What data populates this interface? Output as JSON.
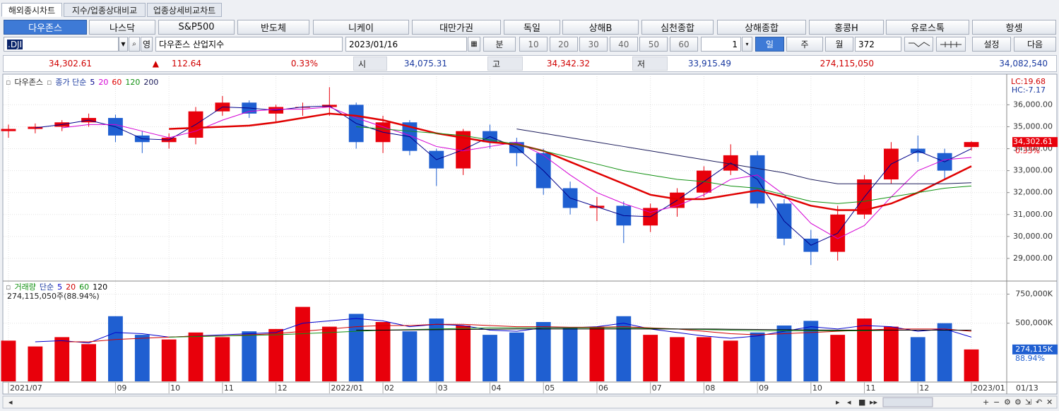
{
  "tabs": [
    "해외종시차트",
    "지수/업종상대비교",
    "업종상세비교차트"
  ],
  "markets": [
    "다우존스",
    "나스닥",
    "S&P500",
    "반도체",
    "니케이",
    "대만가권",
    "독일",
    "상해B",
    "심천종합",
    "상해종합",
    "홍콩H",
    "유로스톡",
    "항셍"
  ],
  "toolbar": {
    "code": ".DJI",
    "eng": "영",
    "name": "다우존스 산업지수",
    "date": "2023/01/16",
    "unit": "분",
    "minutes": [
      "10",
      "20",
      "30",
      "40",
      "50",
      "60"
    ],
    "step": "1",
    "periods": [
      "일",
      "주",
      "월"
    ],
    "count": "372",
    "settings": "설정",
    "next": "다음"
  },
  "quote": {
    "last": "34,302.61",
    "arrow": "▲",
    "change": "112.64",
    "rate": "0.33%",
    "open_label": "시",
    "open": "34,075.31",
    "high_label": "고",
    "high": "34,342.32",
    "low_label": "저",
    "low": "33,915.49",
    "volume": "274,115,050",
    "amount": "34,082,540"
  },
  "chart_data": [
    {
      "type": "candlestick",
      "title": "다우존스",
      "ma_label": "종가 단순",
      "categories": [
        "2021/07",
        null,
        null,
        null,
        "09",
        null,
        "10",
        null,
        "11",
        null,
        "12",
        null,
        "2022/01",
        null,
        "02",
        null,
        "03",
        null,
        "04",
        null,
        "05",
        null,
        "06",
        null,
        "07",
        null,
        "08",
        null,
        "09",
        null,
        "10",
        null,
        "11",
        null,
        "12",
        null,
        "2023/01"
      ],
      "x_end_label": "01/13",
      "open": [
        34800,
        34900,
        35000,
        35200,
        35400,
        34600,
        34300,
        34500,
        35700,
        36100,
        35600,
        35900,
        35900,
        36000,
        34300,
        35200,
        33900,
        33100,
        34800,
        34300,
        33800,
        32200,
        31300,
        31400,
        30500,
        31300,
        32000,
        33000,
        33700,
        31500,
        29900,
        29300,
        31000,
        32600,
        34000,
        33800,
        34075.31
      ],
      "high": [
        35100,
        35150,
        35300,
        35600,
        35550,
        34800,
        34700,
        35900,
        36400,
        36200,
        36000,
        36100,
        36800,
        36100,
        35500,
        35300,
        34000,
        34900,
        35100,
        34500,
        34000,
        32500,
        31800,
        31600,
        31500,
        32200,
        33200,
        34200,
        33900,
        31700,
        30300,
        31400,
        32800,
        34300,
        34600,
        34000,
        34342.32
      ],
      "low": [
        34500,
        34700,
        34800,
        35000,
        34300,
        33800,
        34000,
        34200,
        35500,
        35400,
        35200,
        35500,
        35500,
        34000,
        33800,
        33700,
        32300,
        32800,
        34000,
        33200,
        31900,
        31000,
        30700,
        29700,
        30200,
        30900,
        31800,
        32800,
        31300,
        29600,
        28700,
        28900,
        30800,
        32400,
        33400,
        32600,
        33915.49
      ],
      "close": [
        34900,
        35000,
        35200,
        35400,
        34600,
        34300,
        34500,
        35700,
        36100,
        35600,
        35900,
        35900,
        36000,
        34300,
        35200,
        33900,
        33100,
        34800,
        34300,
        33800,
        32200,
        31300,
        31400,
        30500,
        31300,
        32000,
        33000,
        33700,
        31500,
        29900,
        29300,
        31000,
        32600,
        34000,
        33800,
        33000,
        34302.61
      ],
      "up_color": "#e8000b",
      "down_color": "#1f5fd1",
      "series": [
        {
          "name": "5",
          "color": "#00008b",
          "width": 1,
          "values": [
            null,
            34950,
            35100,
            35300,
            35000,
            34450,
            34400,
            35100,
            35900,
            35850,
            35750,
            35900,
            35950,
            35150,
            34750,
            34550,
            33500,
            33950,
            34550,
            34050,
            33000,
            31750,
            31350,
            30950,
            30900,
            31650,
            32500,
            33350,
            32600,
            30700,
            29600,
            30150,
            31800,
            33300,
            33900,
            33400,
            34000
          ]
        },
        {
          "name": "20",
          "color": "#d400d4",
          "width": 1,
          "values": [
            null,
            null,
            34950,
            35100,
            35100,
            34800,
            34500,
            34800,
            35300,
            35700,
            35800,
            35800,
            35900,
            35400,
            35000,
            34600,
            34100,
            33900,
            34100,
            34300,
            33700,
            32800,
            32000,
            31500,
            31100,
            31400,
            31900,
            32600,
            32800,
            31900,
            30600,
            29900,
            30500,
            31800,
            33000,
            33500,
            33600
          ]
        },
        {
          "name": "60",
          "color": "#e00000",
          "width": 2.5,
          "values": [
            null,
            null,
            null,
            null,
            null,
            null,
            34900,
            34950,
            35000,
            35050,
            35200,
            35400,
            35600,
            35500,
            35300,
            35000,
            34700,
            34500,
            34300,
            34200,
            33900,
            33400,
            32900,
            32400,
            31900,
            31700,
            31700,
            31900,
            32100,
            31800,
            31400,
            31200,
            31200,
            31500,
            32000,
            32600,
            33200
          ]
        },
        {
          "name": "120",
          "color": "#109010",
          "width": 1,
          "values": [
            null,
            null,
            null,
            null,
            null,
            null,
            null,
            null,
            null,
            null,
            null,
            null,
            null,
            35000,
            34900,
            34800,
            34700,
            34600,
            34400,
            34200,
            33900,
            33600,
            33300,
            33000,
            32800,
            32600,
            32500,
            32300,
            32200,
            31900,
            31600,
            31500,
            31600,
            31800,
            32000,
            32200,
            32300
          ]
        },
        {
          "name": "200",
          "color": "#1a1a5a",
          "width": 1,
          "values": [
            null,
            null,
            null,
            null,
            null,
            null,
            null,
            null,
            null,
            null,
            null,
            null,
            null,
            null,
            null,
            null,
            null,
            null,
            null,
            34900,
            34700,
            34500,
            34300,
            34100,
            33900,
            33700,
            33500,
            33300,
            33100,
            32900,
            32600,
            32400,
            32400,
            32400,
            32400,
            32400,
            32450
          ]
        }
      ],
      "ylim": [
        28000,
        37300
      ],
      "yticks": [
        {
          "value": 29000,
          "label": "29,000.00"
        },
        {
          "value": 30000,
          "label": "30,000.00"
        },
        {
          "value": 31000,
          "label": "31,000.00"
        },
        {
          "value": 32000,
          "label": "32,000.00"
        },
        {
          "value": 33000,
          "label": "33,000.00"
        },
        {
          "value": 34000,
          "label": "34,000.00"
        },
        {
          "value": 35000,
          "label": "35,000.00"
        },
        {
          "value": 36000,
          "label": "36,000.00"
        }
      ],
      "grid": true,
      "annotations": [
        "LC:19.68",
        "HC:-7.17"
      ],
      "last_label": "34,302.61",
      "last_rate": "0.33%"
    },
    {
      "type": "bar",
      "title": "거래량",
      "ma_label": "단순",
      "subtitle": "274,115,050주(88.94%)",
      "values": [
        350000,
        300000,
        380000,
        320000,
        560000,
        400000,
        360000,
        420000,
        380000,
        430000,
        450000,
        640000,
        470000,
        580000,
        510000,
        430000,
        540000,
        480000,
        400000,
        420000,
        510000,
        460000,
        470000,
        560000,
        400000,
        380000,
        380000,
        350000,
        420000,
        480000,
        520000,
        400000,
        540000,
        470000,
        380000,
        500000,
        274115
      ],
      "series": [
        {
          "name": "5",
          "color": "#0000cc",
          "values": [
            null,
            340000,
            350000,
            330000,
            420000,
            410000,
            380000,
            390000,
            400000,
            410000,
            420000,
            500000,
            520000,
            540000,
            520000,
            470000,
            490000,
            480000,
            440000,
            430000,
            460000,
            460000,
            470000,
            500000,
            450000,
            420000,
            390000,
            370000,
            390000,
            430000,
            470000,
            450000,
            480000,
            470000,
            430000,
            450000,
            380000
          ]
        },
        {
          "name": "20",
          "color": "#d00000",
          "values": [
            null,
            null,
            340000,
            340000,
            360000,
            370000,
            380000,
            390000,
            390000,
            400000,
            410000,
            430000,
            450000,
            470000,
            480000,
            480000,
            490000,
            490000,
            480000,
            470000,
            470000,
            465000,
            465000,
            470000,
            460000,
            450000,
            430000,
            410000,
            400000,
            410000,
            420000,
            430000,
            440000,
            450000,
            450000,
            450000,
            430000
          ]
        },
        {
          "name": "60",
          "color": "#109010",
          "values": [
            null,
            null,
            null,
            null,
            null,
            null,
            380000,
            385000,
            390000,
            395000,
            400000,
            410000,
            420000,
            430000,
            440000,
            445000,
            450000,
            455000,
            460000,
            460000,
            460000,
            460000,
            460000,
            460000,
            455000,
            450000,
            445000,
            440000,
            435000,
            435000,
            435000,
            435000,
            435000,
            440000,
            440000,
            440000,
            440000
          ]
        },
        {
          "name": "120",
          "color": "#000000",
          "values": [
            null,
            null,
            null,
            null,
            null,
            null,
            null,
            null,
            null,
            null,
            null,
            null,
            null,
            440000,
            440000,
            442000,
            444000,
            446000,
            448000,
            450000,
            450000,
            450000,
            450000,
            450000,
            450000,
            450000,
            450000,
            448000,
            446000,
            444000,
            442000,
            440000,
            440000,
            440000,
            440000,
            440000,
            440000
          ]
        }
      ],
      "ylim": [
        0,
        850000
      ],
      "yticks": [
        {
          "value": 500000,
          "label": "500,000K"
        },
        {
          "value": 750000,
          "label": "750,000K"
        }
      ],
      "grid": true,
      "last_label": "274,115K",
      "last_rate": "88.94%"
    }
  ]
}
